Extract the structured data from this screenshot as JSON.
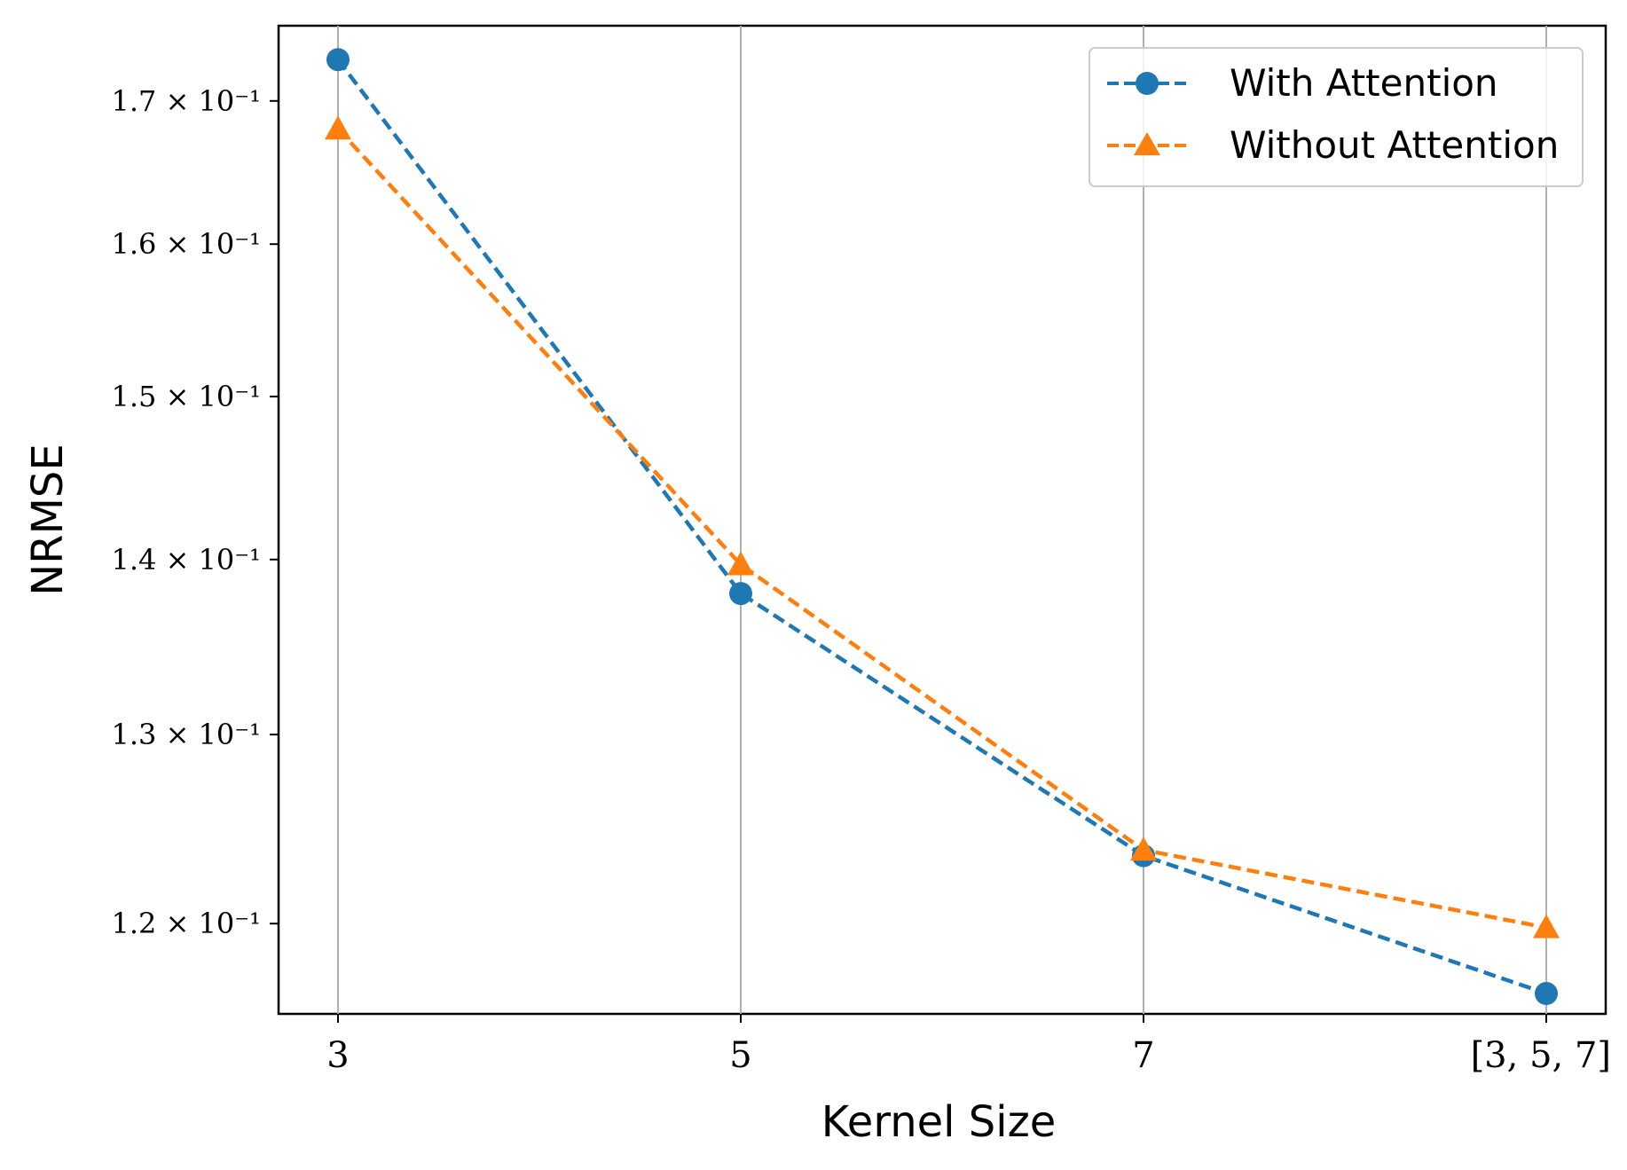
{
  "chart_data": {
    "type": "line",
    "title": "",
    "xlabel": "Kernel Size",
    "ylabel": "NRMSE",
    "categories": [
      "3",
      "5",
      "7",
      "[3, 5, 7]"
    ],
    "yscale": "log",
    "ylim": [
      0.1155,
      0.1755
    ],
    "yticks": [
      0.12,
      0.13,
      0.14,
      0.15,
      0.16,
      0.17
    ],
    "ytick_labels": [
      "1.2 × 10⁻¹",
      "1.3 × 10⁻¹",
      "1.4 × 10⁻¹",
      "1.5 × 10⁻¹",
      "1.6 × 10⁻¹",
      "1.7 × 10⁻¹"
    ],
    "grid": "x-axis vertical lines",
    "legend_position": "top-right",
    "series": [
      {
        "name": "With Attention",
        "values": [
          0.173,
          0.138,
          0.1235,
          0.1165
        ],
        "color": "#1f77b4",
        "marker": "circle",
        "linestyle": "dashed"
      },
      {
        "name": "Without Attention",
        "values": [
          0.168,
          0.1397,
          0.1238,
          0.1198
        ],
        "color": "#ff7f0e",
        "marker": "triangle",
        "linestyle": "dashed"
      }
    ]
  }
}
